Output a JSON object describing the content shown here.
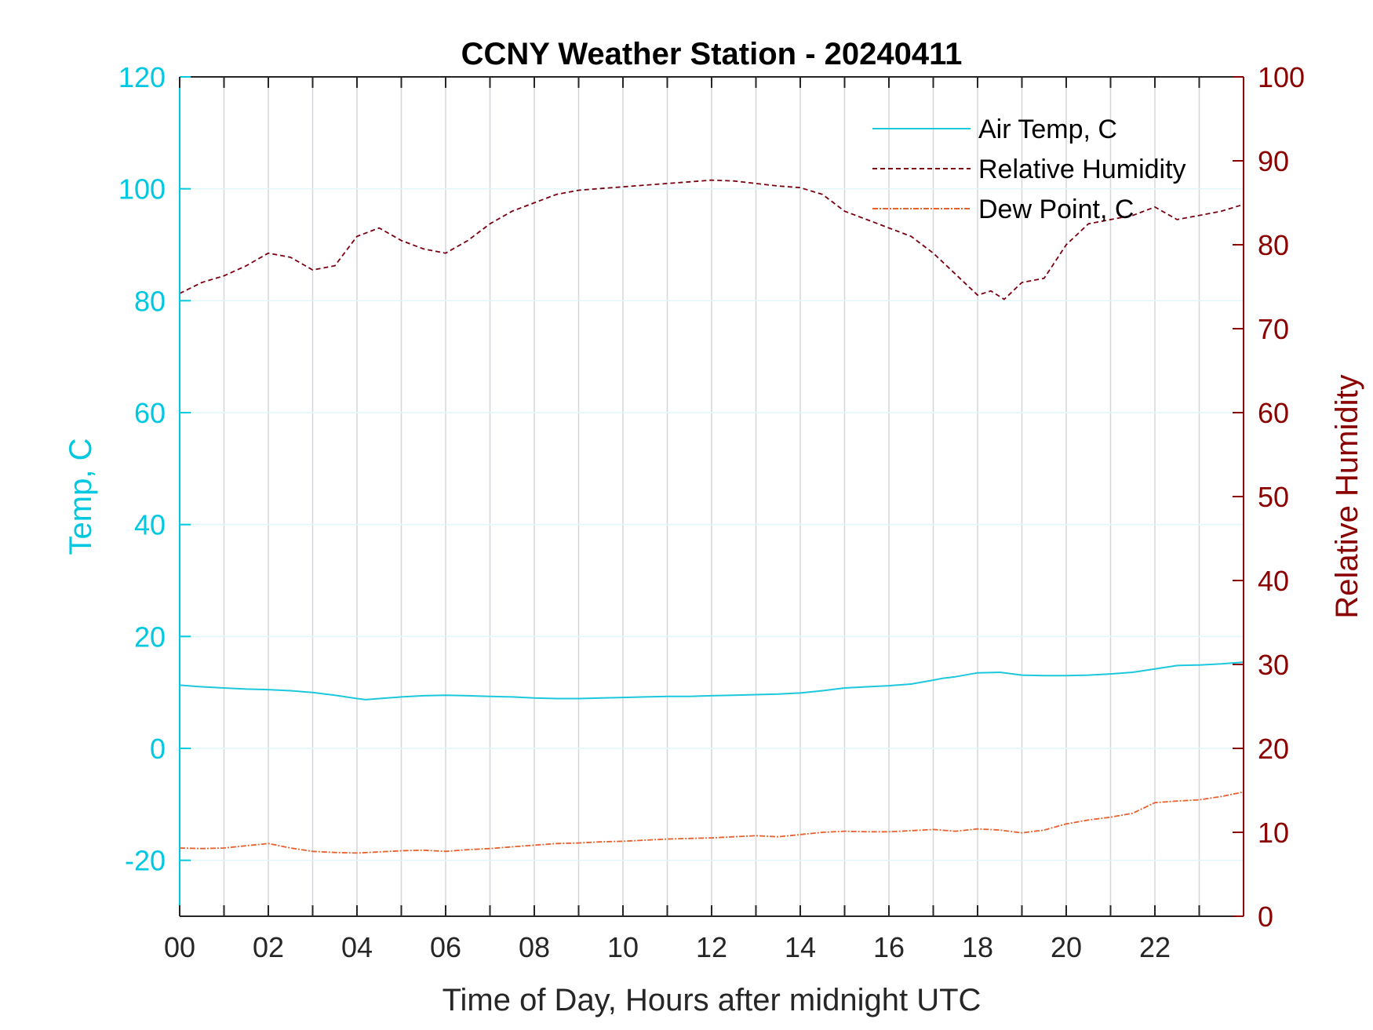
{
  "chart_data": {
    "type": "line",
    "title": "CCNY Weather Station - 20240411",
    "xlabel": "Time of Day, Hours after midnight UTC",
    "ylabel_left": "Temp, C",
    "ylabel_right": "Relative Humidity",
    "xlim": [
      0,
      24
    ],
    "ylim_left": [
      -30,
      120
    ],
    "ylim_right": [
      0,
      100
    ],
    "x_ticks": [
      0,
      2,
      4,
      6,
      8,
      10,
      12,
      14,
      16,
      18,
      20,
      22
    ],
    "x_tick_labels": [
      "00",
      "02",
      "04",
      "06",
      "08",
      "10",
      "12",
      "14",
      "16",
      "18",
      "20",
      "22"
    ],
    "y_left_ticks": [
      -20,
      0,
      20,
      40,
      60,
      80,
      100,
      120
    ],
    "y_left_tick_labels": [
      "-20",
      "0",
      "20",
      "40",
      "60",
      "80",
      "100",
      "120"
    ],
    "y_right_ticks": [
      0,
      10,
      20,
      30,
      40,
      50,
      60,
      70,
      80,
      90,
      100
    ],
    "y_right_tick_labels": [
      "0",
      "10",
      "20",
      "30",
      "40",
      "50",
      "60",
      "70",
      "80",
      "90",
      "100"
    ],
    "grid": true,
    "legend_position": "top-right",
    "colors": {
      "temp_axis": "#00c8e0",
      "rh_axis": "#8b0000",
      "air_temp": "#1ec8dc",
      "relative_humidity": "#7a0010",
      "dew_point": "#e8602c"
    },
    "series": [
      {
        "name": "Air Temp, C",
        "axis": "left",
        "style": "solid",
        "x": [
          0,
          0.5,
          1,
          1.5,
          2,
          2.5,
          3,
          3.5,
          4,
          4.2,
          4.5,
          5,
          5.5,
          6,
          6.5,
          7,
          7.5,
          8,
          8.5,
          9,
          9.5,
          10,
          10.5,
          11,
          11.5,
          12,
          12.5,
          13,
          13.5,
          14,
          14.5,
          15,
          15.5,
          16,
          16.5,
          17,
          17.2,
          17.5,
          18,
          18.5,
          19,
          19.5,
          20,
          20.5,
          21,
          21.5,
          22,
          22.5,
          23,
          23.5,
          24
        ],
        "y": [
          11.3,
          11.0,
          10.8,
          10.6,
          10.5,
          10.3,
          10.0,
          9.5,
          8.9,
          8.7,
          8.9,
          9.2,
          9.4,
          9.5,
          9.4,
          9.3,
          9.2,
          9.0,
          8.9,
          8.9,
          9.0,
          9.1,
          9.2,
          9.3,
          9.3,
          9.4,
          9.5,
          9.6,
          9.7,
          9.9,
          10.3,
          10.8,
          11.0,
          11.2,
          11.5,
          12.2,
          12.5,
          12.8,
          13.5,
          13.6,
          13.1,
          13.0,
          13.0,
          13.1,
          13.3,
          13.6,
          14.2,
          14.8,
          14.9,
          15.1,
          15.4
        ]
      },
      {
        "name": "Relative Humidity",
        "axis": "right",
        "style": "dashed",
        "x": [
          0,
          0.5,
          1,
          1.5,
          2,
          2.5,
          3,
          3.5,
          4,
          4.5,
          5,
          5.5,
          6,
          6.5,
          7,
          7.5,
          8,
          8.5,
          9,
          9.5,
          10,
          10.5,
          11,
          11.5,
          12,
          12.5,
          13,
          13.5,
          14,
          14.5,
          15,
          15.5,
          16,
          16.5,
          17,
          17.5,
          18,
          18.3,
          18.6,
          19,
          19.5,
          20,
          20.5,
          21,
          21.5,
          22,
          22.5,
          23,
          23.5,
          24
        ],
        "y": [
          74.2,
          75.5,
          76.3,
          77.5,
          79.0,
          78.5,
          77.0,
          77.5,
          81.0,
          82.0,
          80.5,
          79.5,
          79.0,
          80.5,
          82.5,
          84.0,
          85.0,
          86.0,
          86.5,
          86.7,
          86.9,
          87.1,
          87.3,
          87.5,
          87.7,
          87.6,
          87.3,
          87.0,
          86.8,
          86.0,
          84.0,
          83.0,
          82.0,
          81.0,
          79.0,
          76.5,
          74.0,
          74.5,
          73.5,
          75.5,
          76.0,
          80.0,
          82.5,
          83.0,
          83.5,
          84.5,
          83.0,
          83.5,
          84.0,
          84.8
        ]
      },
      {
        "name": "Dew Point, C",
        "axis": "left",
        "style": "dash-dot",
        "x": [
          0,
          0.5,
          1,
          1.5,
          2,
          2.5,
          3,
          3.5,
          4,
          4.5,
          5,
          5.5,
          6,
          6.5,
          7,
          7.5,
          8,
          8.5,
          9,
          9.5,
          10,
          10.5,
          11,
          11.5,
          12,
          12.5,
          13,
          13.5,
          14,
          14.5,
          15,
          15.5,
          16,
          16.5,
          17,
          17.5,
          18,
          18.5,
          19,
          19.5,
          20,
          20.5,
          21,
          21.5,
          22,
          22.5,
          23,
          23.5,
          24
        ],
        "y": [
          -17.8,
          -17.9,
          -17.8,
          -17.4,
          -17.0,
          -17.8,
          -18.4,
          -18.6,
          -18.7,
          -18.5,
          -18.3,
          -18.2,
          -18.4,
          -18.1,
          -17.9,
          -17.6,
          -17.3,
          -17.0,
          -16.9,
          -16.7,
          -16.6,
          -16.4,
          -16.2,
          -16.1,
          -16.0,
          -15.8,
          -15.6,
          -15.8,
          -15.4,
          -15.0,
          -14.8,
          -14.9,
          -14.9,
          -14.7,
          -14.5,
          -14.8,
          -14.4,
          -14.6,
          -15.1,
          -14.6,
          -13.5,
          -12.8,
          -12.3,
          -11.6,
          -9.7,
          -9.4,
          -9.2,
          -8.6,
          -7.8
        ]
      }
    ]
  }
}
